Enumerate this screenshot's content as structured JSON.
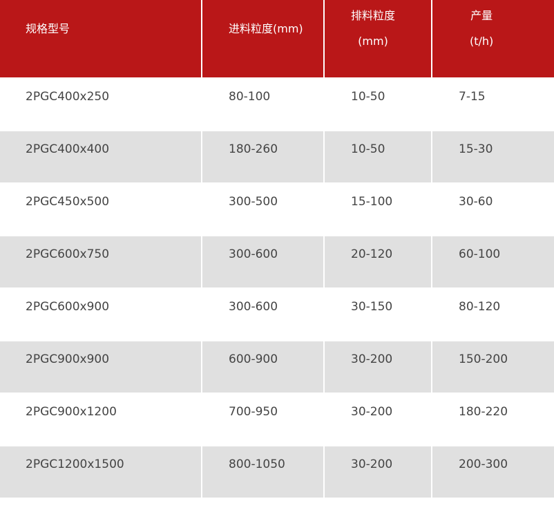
{
  "colors": {
    "header_bg": "#b91718",
    "row_alt_bg": "#e0e0e0",
    "text": "#444444"
  },
  "headers": [
    {
      "line1": "规格型号",
      "line2": ""
    },
    {
      "line1": "进料粒度(mm)",
      "line2": ""
    },
    {
      "line1": "排料粒度",
      "line2": "(mm)"
    },
    {
      "line1": "产量",
      "line2": "(t/h)"
    }
  ],
  "rows": [
    [
      "2PGC400x250",
      "80-100",
      "10-50",
      "7-15"
    ],
    [
      "2PGC400x400",
      "180-260",
      "10-50",
      "15-30"
    ],
    [
      "2PGC450x500",
      "300-500",
      "15-100",
      "30-60"
    ],
    [
      "2PGC600x750",
      "300-600",
      "20-120",
      "60-100"
    ],
    [
      "2PGC600x900",
      "300-600",
      "30-150",
      "80-120"
    ],
    [
      "2PGC900x900",
      "600-900",
      "30-200",
      "150-200"
    ],
    [
      "2PGC900x1200",
      "700-950",
      "30-200",
      "180-220"
    ],
    [
      "2PGC1200x1500",
      "800-1050",
      "30-200",
      "200-300"
    ]
  ]
}
